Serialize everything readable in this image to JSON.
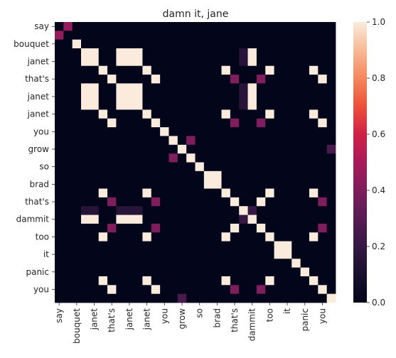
{
  "chart_data": {
    "type": "heatmap",
    "title": "damn it, jane",
    "xlabel": "",
    "ylabel": "",
    "row_labels": [
      "say",
      "bouquet",
      "janet",
      "that's",
      "janet",
      "janet",
      "you",
      "grow",
      "so",
      "brad",
      "that's",
      "dammit",
      "too",
      "it",
      "panic",
      "you"
    ],
    "col_labels": [
      "say",
      "bouquet",
      "janet",
      "that's",
      "janet",
      "janet",
      "you",
      "grow",
      "so",
      "brad",
      "that's",
      "dammit",
      "too",
      "it",
      "panic",
      "you"
    ],
    "tokens": [
      "say",
      "say",
      "bouquet",
      "janet",
      "janet",
      "that's",
      "that's",
      "janet",
      "janet",
      "janet",
      "that's",
      "you",
      "you",
      "grow",
      "grow",
      "so",
      "so",
      "brad",
      "brad",
      "that's",
      "that's",
      "dammit",
      "dammit",
      "too",
      "too",
      "it",
      "it",
      "panic",
      "panic",
      "you",
      "you",
      "you"
    ],
    "values": [
      [
        0,
        0.45,
        0,
        0,
        0,
        0,
        0,
        0,
        0,
        0,
        0,
        0,
        0,
        0,
        0,
        0,
        0,
        0,
        0,
        0,
        0,
        0,
        0,
        0,
        0,
        0,
        0,
        0,
        0,
        0,
        0,
        0
      ],
      [
        0.45,
        0,
        0,
        0,
        0,
        0,
        0,
        0,
        0,
        0,
        0,
        0,
        0,
        0,
        0,
        0,
        0,
        0,
        0,
        0,
        0,
        0,
        0,
        0,
        0,
        0,
        0,
        0,
        0,
        0,
        0,
        0
      ],
      [
        0,
        0,
        1,
        0,
        0,
        0,
        0,
        0,
        0,
        0,
        0,
        0,
        0,
        0,
        0,
        0,
        0,
        0,
        0,
        0,
        0,
        0,
        0,
        0,
        0,
        0,
        0,
        0,
        0,
        0,
        0,
        0
      ],
      [
        0,
        0,
        0,
        1,
        1,
        0,
        0,
        1,
        1,
        1,
        0,
        0,
        0,
        0,
        0,
        0,
        0,
        0,
        0,
        0,
        0,
        0.15,
        1,
        0,
        0,
        0,
        0,
        0,
        0,
        0,
        0,
        0
      ],
      [
        0,
        0,
        0,
        1,
        1,
        0,
        0,
        1,
        1,
        1,
        0,
        0,
        0,
        0,
        0,
        0,
        0,
        0,
        0,
        0,
        0,
        0.15,
        1,
        0,
        0,
        0,
        0,
        0,
        0,
        0,
        0,
        0
      ],
      [
        0,
        0,
        0,
        0,
        0,
        1,
        0,
        0,
        0,
        0,
        1,
        0,
        0,
        0,
        0,
        0,
        0,
        0,
        0,
        1,
        0,
        0,
        0,
        0,
        1,
        0,
        0,
        0,
        0,
        1,
        0,
        0
      ],
      [
        0,
        0,
        0,
        0,
        0,
        0,
        1,
        0,
        0,
        0,
        0,
        1,
        0,
        0,
        0,
        0,
        0,
        0,
        0,
        0,
        0.4,
        0,
        0,
        0.4,
        0,
        0,
        0,
        0,
        0,
        0,
        1,
        0
      ],
      [
        0,
        0,
        0,
        1,
        1,
        0,
        0,
        1,
        1,
        1,
        0,
        0,
        0,
        0,
        0,
        0,
        0,
        0,
        0,
        0,
        0,
        0.15,
        1,
        0,
        0,
        0,
        0,
        0,
        0,
        0,
        0,
        0
      ],
      [
        0,
        0,
        0,
        1,
        1,
        0,
        0,
        1,
        1,
        1,
        0,
        0,
        0,
        0,
        0,
        0,
        0,
        0,
        0,
        0,
        0,
        0.15,
        1,
        0,
        0,
        0,
        0,
        0,
        0,
        0,
        0,
        0
      ],
      [
        0,
        0,
        0,
        1,
        1,
        0,
        0,
        1,
        1,
        1,
        0,
        0,
        0,
        0,
        0,
        0,
        0,
        0,
        0,
        0,
        0,
        0.15,
        1,
        0,
        0,
        0,
        0,
        0,
        0,
        0,
        0,
        0
      ],
      [
        0,
        0,
        0,
        0,
        0,
        1,
        0,
        0,
        0,
        0,
        1,
        0,
        0,
        0,
        0,
        0,
        0,
        0,
        0,
        1,
        0,
        0,
        0,
        0,
        1,
        0,
        0,
        0,
        0,
        1,
        0,
        0
      ],
      [
        0,
        0,
        0,
        0,
        0,
        0,
        1,
        0,
        0,
        0,
        0,
        1,
        0,
        0,
        0,
        0,
        0,
        0,
        0,
        0,
        0.4,
        0,
        0,
        0.4,
        0,
        0,
        0,
        0,
        0,
        0,
        1,
        0
      ],
      [
        0,
        0,
        0,
        0,
        0,
        0,
        0,
        0,
        0,
        0,
        0,
        0,
        1,
        0,
        0,
        0,
        0,
        0,
        0,
        0,
        0,
        0,
        0,
        0,
        0,
        0,
        0,
        0,
        0,
        0,
        0,
        0
      ],
      [
        0,
        0,
        0,
        0,
        0,
        0,
        0,
        0,
        0,
        0,
        0,
        0,
        0,
        1,
        0,
        0.4,
        0,
        0,
        0,
        0,
        0,
        0,
        0,
        0,
        0,
        0,
        0,
        0,
        0,
        0,
        0,
        0
      ],
      [
        0,
        0,
        0,
        0,
        0,
        0,
        0,
        0,
        0,
        0,
        0,
        0,
        0,
        0,
        1,
        0,
        0,
        0,
        0,
        0,
        0,
        0,
        0,
        0,
        0,
        0,
        0,
        0,
        0,
        0,
        0,
        0.25
      ],
      [
        0,
        0,
        0,
        0,
        0,
        0,
        0,
        0,
        0,
        0,
        0,
        0,
        0,
        0.4,
        0,
        1,
        0,
        0,
        0,
        0,
        0,
        0,
        0,
        0,
        0,
        0,
        0,
        0,
        0,
        0,
        0,
        0
      ],
      [
        0,
        0,
        0,
        0,
        0,
        0,
        0,
        0,
        0,
        0,
        0,
        0,
        0,
        0,
        0,
        0,
        1,
        0,
        0,
        0,
        0,
        0,
        0,
        0,
        0,
        0,
        0,
        0,
        0,
        0,
        0,
        0
      ],
      [
        0,
        0,
        0,
        0,
        0,
        0,
        0,
        0,
        0,
        0,
        0,
        0,
        0,
        0,
        0,
        0,
        0,
        1,
        1,
        0,
        0,
        0,
        0,
        0,
        0,
        0,
        0,
        0,
        0,
        0,
        0,
        0
      ],
      [
        0,
        0,
        0,
        0,
        0,
        0,
        0,
        0,
        0,
        0,
        0,
        0,
        0,
        0,
        0,
        0,
        0,
        1,
        1,
        0,
        0,
        0,
        0,
        0,
        0,
        0,
        0,
        0,
        0,
        0,
        0,
        0
      ],
      [
        0,
        0,
        0,
        0,
        0,
        1,
        0,
        0,
        0,
        0,
        1,
        0,
        0,
        0,
        0,
        0,
        0,
        0,
        0,
        1,
        0,
        0,
        0,
        0,
        1,
        0,
        0,
        0,
        0,
        1,
        0,
        0
      ],
      [
        0,
        0,
        0,
        0,
        0,
        0,
        0.4,
        0,
        0,
        0,
        0,
        0.4,
        0,
        0,
        0,
        0,
        0,
        0,
        0,
        0,
        1,
        0,
        0,
        1,
        0,
        0,
        0,
        0,
        0,
        0,
        0.4,
        0
      ],
      [
        0,
        0,
        0,
        0.15,
        0.15,
        0,
        0,
        0.15,
        0.15,
        0.15,
        0,
        0,
        0,
        0,
        0,
        0,
        0,
        0,
        0,
        0,
        0,
        1,
        0.2,
        0,
        0,
        0,
        0,
        0,
        0,
        0,
        0,
        0
      ],
      [
        0,
        0,
        0,
        1,
        1,
        0,
        0,
        1,
        1,
        1,
        0,
        0,
        0,
        0,
        0,
        0,
        0,
        0,
        0,
        0,
        0,
        0.2,
        1,
        0,
        0,
        0,
        0,
        0,
        0,
        0,
        0,
        0
      ],
      [
        0,
        0,
        0,
        0,
        0,
        0,
        0.4,
        0,
        0,
        0,
        0,
        0.4,
        0,
        0,
        0,
        0,
        0,
        0,
        0,
        0,
        1,
        0,
        0,
        1,
        0,
        0,
        0,
        0,
        0,
        0,
        0.4,
        0
      ],
      [
        0,
        0,
        0,
        0,
        0,
        1,
        0,
        0,
        0,
        0,
        1,
        0,
        0,
        0,
        0,
        0,
        0,
        0,
        0,
        1,
        0,
        0,
        0,
        0,
        1,
        0,
        0,
        0,
        0,
        1,
        0,
        0
      ],
      [
        0,
        0,
        0,
        0,
        0,
        0,
        0,
        0,
        0,
        0,
        0,
        0,
        0,
        0,
        0,
        0,
        0,
        0,
        0,
        0,
        0,
        0,
        0,
        0,
        0,
        1,
        1,
        0,
        0,
        0,
        0,
        0
      ],
      [
        0,
        0,
        0,
        0,
        0,
        0,
        0,
        0,
        0,
        0,
        0,
        0,
        0,
        0,
        0,
        0,
        0,
        0,
        0,
        0,
        0,
        0,
        0,
        0,
        0,
        1,
        1,
        0,
        0,
        0,
        0,
        0
      ],
      [
        0,
        0,
        0,
        0,
        0,
        0,
        0,
        0,
        0,
        0,
        0,
        0,
        0,
        0,
        0,
        0,
        0,
        0,
        0,
        0,
        0,
        0,
        0,
        0,
        0,
        0,
        0,
        1,
        0,
        0,
        0,
        0
      ],
      [
        0,
        0,
        0,
        0,
        0,
        0,
        0,
        0,
        0,
        0,
        0,
        0,
        0,
        0,
        0,
        0,
        0,
        0,
        0,
        0,
        0,
        0,
        0,
        0,
        0,
        0,
        0,
        0,
        1,
        0,
        0,
        0
      ],
      [
        0,
        0,
        0,
        0,
        0,
        1,
        0,
        0,
        0,
        0,
        1,
        0,
        0,
        0,
        0,
        0,
        0,
        0,
        0,
        1,
        0,
        0,
        0,
        0,
        1,
        0,
        0,
        0,
        0,
        1,
        0,
        0
      ],
      [
        0,
        0,
        0,
        0,
        0,
        0,
        1,
        0,
        0,
        0,
        0,
        1,
        0,
        0,
        0,
        0,
        0,
        0,
        0,
        0,
        0.4,
        0,
        0,
        0.4,
        0,
        0,
        0,
        0,
        0,
        0,
        1,
        0
      ],
      [
        0,
        0,
        0,
        0,
        0,
        0,
        0,
        0,
        0,
        0,
        0,
        0,
        0,
        0,
        0.25,
        0,
        0,
        0,
        0,
        0,
        0,
        0,
        0,
        0,
        0,
        0,
        0,
        0,
        0,
        0,
        0,
        1
      ]
    ],
    "vmin": 0,
    "vmax": 1,
    "colorbar_ticks": [
      "0.0",
      "0.2",
      "0.4",
      "0.6",
      "0.8",
      "1.0"
    ],
    "colorbar_tick_values": [
      0,
      0.2,
      0.4,
      0.6,
      0.8,
      1.0
    ],
    "colormap": "rocket",
    "legend": "colorbar-right"
  }
}
